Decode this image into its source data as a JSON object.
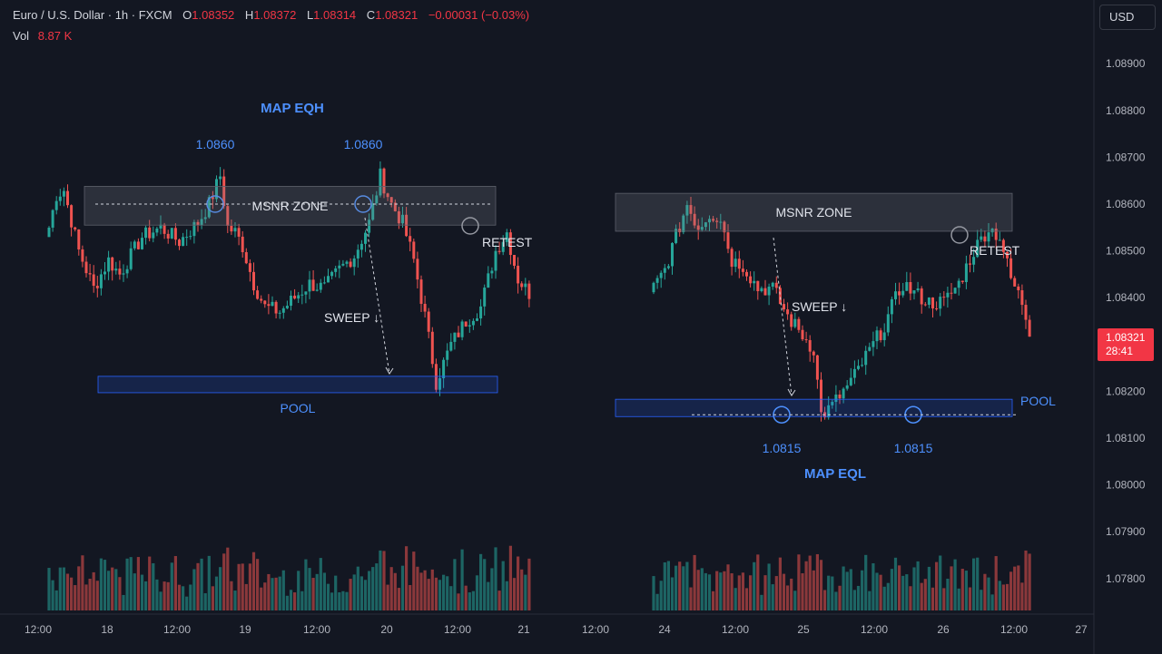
{
  "header": {
    "symbol": "Euro / U.S. Dollar · 1h · FXCM",
    "open_label": "O",
    "open": "1.08352",
    "high_label": "H",
    "high": "1.08372",
    "low_label": "L",
    "low": "1.08314",
    "close_label": "C",
    "close": "1.08321",
    "change": "−0.00031 (−0.03%)",
    "vol_label": "Vol",
    "vol": "8.87 K"
  },
  "currency_button": "USD",
  "last_price": {
    "price": "1.08321",
    "countdown": "28:41"
  },
  "colors": {
    "up": "#26a69a",
    "down": "#ef5350",
    "accent": "#4d90fe",
    "background": "#131722",
    "zone": "#787b86"
  },
  "chart_data": {
    "type": "candlestick",
    "symbol": "EURUSD",
    "timeframe": "1h",
    "y_axis": {
      "ticks": [
        1.089,
        1.088,
        1.087,
        1.086,
        1.085,
        1.084,
        1.083,
        1.082,
        1.081,
        1.08,
        1.079,
        1.078
      ],
      "tick_labels": [
        "1.08900",
        "1.08800",
        "1.08700",
        "1.08600",
        "1.08500",
        "1.08400",
        "1.08300",
        "1.08200",
        "1.08100",
        "1.08000",
        "1.07900",
        "1.07800"
      ]
    },
    "x_axis": {
      "tick_labels": [
        "12:00",
        "18",
        "12:00",
        "19",
        "12:00",
        "20",
        "12:00",
        "21",
        "12:00",
        "24",
        "12:00",
        "25",
        "12:00",
        "26",
        "12:00",
        "27"
      ]
    },
    "segments": [
      {
        "waypoints": [
          [
            0,
            1.0855
          ],
          [
            2,
            1.0862
          ],
          [
            4,
            1.0863
          ],
          [
            8,
            1.085
          ],
          [
            12,
            1.0842
          ],
          [
            16,
            1.0848
          ],
          [
            19,
            1.0845
          ],
          [
            25,
            1.0853
          ],
          [
            30,
            1.0855
          ],
          [
            35,
            1.0852
          ],
          [
            40,
            1.0856
          ],
          [
            43,
            1.086
          ],
          [
            46,
            1.0866
          ],
          [
            48,
            1.0855
          ],
          [
            50,
            1.0854
          ],
          [
            52,
            1.0851
          ],
          [
            55,
            1.0843
          ],
          [
            58,
            1.0838
          ],
          [
            62,
            1.0837
          ],
          [
            66,
            1.084
          ],
          [
            70,
            1.0843
          ],
          [
            74,
            1.0842
          ],
          [
            78,
            1.0846
          ],
          [
            82,
            1.0849
          ],
          [
            86,
            1.0856
          ],
          [
            89,
            1.0866
          ],
          [
            92,
            1.086
          ],
          [
            95,
            1.0856
          ],
          [
            98,
            1.0848
          ],
          [
            101,
            1.0836
          ],
          [
            104,
            1.0822
          ],
          [
            108,
            1.083
          ],
          [
            112,
            1.0835
          ],
          [
            116,
            1.0838
          ],
          [
            120,
            1.085
          ],
          [
            123,
            1.0854
          ],
          [
            126,
            1.0844
          ],
          [
            129,
            1.0841
          ]
        ]
      },
      {
        "waypoints": [
          [
            0,
            1.0842
          ],
          [
            3,
            1.0846
          ],
          [
            6,
            1.0853
          ],
          [
            9,
            1.086
          ],
          [
            12,
            1.0855
          ],
          [
            15,
            1.0858
          ],
          [
            18,
            1.0857
          ],
          [
            21,
            1.0848
          ],
          [
            24,
            1.0847
          ],
          [
            28,
            1.0842
          ],
          [
            32,
            1.0842
          ],
          [
            36,
            1.0836
          ],
          [
            40,
            1.0832
          ],
          [
            43,
            1.0829
          ],
          [
            45,
            1.0815
          ],
          [
            47,
            1.0816
          ],
          [
            50,
            1.0819
          ],
          [
            53,
            1.0822
          ],
          [
            56,
            1.0826
          ],
          [
            59,
            1.083
          ],
          [
            62,
            1.0834
          ],
          [
            64,
            1.0838
          ],
          [
            67,
            1.0843
          ],
          [
            70,
            1.0841
          ],
          [
            74,
            1.0839
          ],
          [
            78,
            1.0839
          ],
          [
            82,
            1.0843
          ],
          [
            86,
            1.085
          ],
          [
            90,
            1.0855
          ],
          [
            93,
            1.0853
          ],
          [
            96,
            1.0844
          ],
          [
            99,
            1.0839
          ],
          [
            101,
            1.0833
          ]
        ]
      }
    ],
    "annotations": [
      {
        "type": "label",
        "text": "MAP EQH"
      },
      {
        "type": "label",
        "text": "1.0860",
        "price": 1.086
      },
      {
        "type": "label",
        "text": "1.0860",
        "price": 1.086
      },
      {
        "type": "zone",
        "text": "MSNR ZONE",
        "price_top": 1.08638,
        "price_bottom": 1.08555
      },
      {
        "type": "label",
        "text": "RETEST"
      },
      {
        "type": "label",
        "text": "SWEEP ↓"
      },
      {
        "type": "zone",
        "text": "POOL",
        "price_top": 1.08232,
        "price_bottom": 1.08197
      },
      {
        "type": "zone",
        "text": "MSNR ZONE",
        "price_top": 1.08623,
        "price_bottom": 1.08542
      },
      {
        "type": "label",
        "text": "RETEST"
      },
      {
        "type": "label",
        "text": "SWEEP ↓"
      },
      {
        "type": "zone",
        "text": "POOL",
        "price_top": 1.08183,
        "price_bottom": 1.08146
      },
      {
        "type": "label",
        "text": "1.0815",
        "price": 1.0815
      },
      {
        "type": "label",
        "text": "1.0815",
        "price": 1.0815
      },
      {
        "type": "label",
        "text": "MAP EQL"
      }
    ],
    "grid": false
  }
}
